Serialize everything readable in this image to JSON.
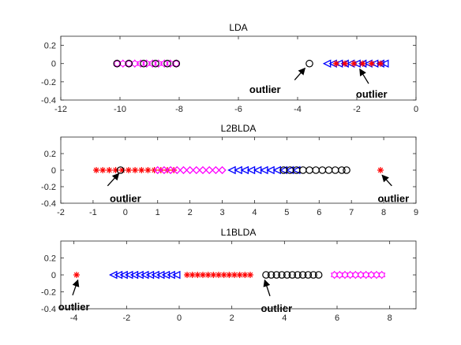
{
  "chart_data": [
    {
      "type": "scatter",
      "title": "LDA",
      "xlim": [
        -12,
        0
      ],
      "ylim": [
        -0.4,
        0.3
      ],
      "xticks": [
        -12,
        -10,
        -8,
        -6,
        -4,
        -2,
        0
      ],
      "xtick_labels": [
        "-12",
        "-10",
        "-8",
        "-6",
        "-4",
        "-2",
        "0"
      ],
      "yticks": [
        0.2,
        0,
        -0.2,
        -0.4
      ],
      "ytick_labels": [
        "0.2",
        "0",
        "-0.2",
        "-0.4"
      ],
      "series": [
        {
          "marker": "hexagram",
          "color": "#ff00ff",
          "x": [
            -10.1,
            -9.9,
            -9.7,
            -9.5,
            -9.3,
            -9.1,
            -8.9,
            -8.7,
            -8.5,
            -8.3,
            -8.1
          ],
          "y": [
            0,
            0,
            0,
            0,
            0,
            0,
            0,
            0,
            0,
            0,
            0
          ]
        },
        {
          "marker": "circle",
          "color": "#000000",
          "x": [
            -10.1,
            -9.7,
            -9.2,
            -8.8,
            -8.4,
            -8.1
          ],
          "y": [
            0,
            0,
            0,
            0,
            0,
            0
          ]
        },
        {
          "marker": "triangle-left",
          "color": "#0000ff",
          "x": [
            -3.0,
            -2.8,
            -2.6,
            -2.4,
            -2.2,
            -2.0,
            -1.8,
            -1.6,
            -1.4,
            -1.2,
            -1.05
          ],
          "y": [
            0,
            0,
            0,
            0,
            0,
            0,
            0,
            0,
            0,
            0,
            0
          ]
        },
        {
          "marker": "star",
          "color": "#ff0000",
          "x": [
            -2.7,
            -2.4,
            -2.1,
            -1.8,
            -1.5,
            -1.2
          ],
          "y": [
            0,
            0,
            0,
            0,
            0,
            0
          ]
        },
        {
          "marker": "circle",
          "color": "#000000",
          "x": [
            -3.6
          ],
          "y": [
            0
          ]
        }
      ],
      "annotations": [
        {
          "text": "outlier",
          "x": -5.1,
          "y": -0.28,
          "arrow_from": [
            -4.1,
            -0.18
          ],
          "arrow_to": [
            -3.75,
            -0.05
          ]
        },
        {
          "text": "outlier",
          "x": -1.5,
          "y": -0.33,
          "arrow_from": [
            -1.6,
            -0.22
          ],
          "arrow_to": [
            -1.9,
            -0.06
          ]
        }
      ]
    },
    {
      "type": "scatter",
      "title": "L2BLDA",
      "xlim": [
        -2,
        9
      ],
      "ylim": [
        -0.4,
        0.4
      ],
      "xticks": [
        -2,
        -1,
        0,
        1,
        2,
        3,
        4,
        5,
        6,
        7,
        8,
        9
      ],
      "xtick_labels": [
        "-2",
        "-1",
        "0",
        "1",
        "2",
        "3",
        "4",
        "5",
        "6",
        "7",
        "8",
        "9"
      ],
      "yticks": [
        0.2,
        0,
        -0.2,
        -0.4
      ],
      "ytick_labels": [
        "0.2",
        "0",
        "-0.2",
        "-0.4"
      ],
      "series": [
        {
          "marker": "star",
          "color": "#ff0000",
          "x": [
            -0.9,
            -0.7,
            -0.5,
            -0.3,
            -0.1,
            0.1,
            0.3,
            0.5,
            0.7,
            0.9,
            1.1,
            1.3,
            1.5
          ],
          "y": [
            0,
            0,
            0,
            0,
            0,
            0,
            0,
            0,
            0,
            0,
            0,
            0,
            0
          ]
        },
        {
          "marker": "diamond",
          "color": "#ff00ff",
          "x": [
            1.0,
            1.2,
            1.4,
            1.6,
            1.8,
            2.0,
            2.2,
            2.4,
            2.6,
            2.8,
            3.0
          ],
          "y": [
            0,
            0,
            0,
            0,
            0,
            0,
            0,
            0,
            0,
            0,
            0
          ]
        },
        {
          "marker": "triangle-left",
          "color": "#0000ff",
          "x": [
            3.3,
            3.5,
            3.7,
            3.9,
            4.1,
            4.3,
            4.5,
            4.7,
            4.9,
            5.1,
            5.3
          ],
          "y": [
            0,
            0,
            0,
            0,
            0,
            0,
            0,
            0,
            0,
            0,
            0
          ]
        },
        {
          "marker": "circle",
          "color": "#000000",
          "x": [
            4.9,
            5.1,
            5.3,
            5.5,
            5.7,
            5.9,
            6.1,
            6.3,
            6.5,
            6.7,
            6.85
          ],
          "y": [
            0,
            0,
            0,
            0,
            0,
            0,
            0,
            0,
            0,
            0,
            0
          ]
        },
        {
          "marker": "circle",
          "color": "#000000",
          "x": [
            -0.15
          ],
          "y": [
            0
          ]
        },
        {
          "marker": "star",
          "color": "#ff0000",
          "x": [
            7.9
          ],
          "y": [
            0
          ]
        }
      ],
      "annotations": [
        {
          "text": "outlier",
          "x": 0.0,
          "y": -0.34,
          "arrow_from": [
            -0.55,
            -0.19
          ],
          "arrow_to": [
            -0.2,
            -0.04
          ]
        },
        {
          "text": "outlier",
          "x": 8.3,
          "y": -0.34,
          "arrow_from": [
            8.25,
            -0.19
          ],
          "arrow_to": [
            7.95,
            -0.06
          ]
        }
      ]
    },
    {
      "type": "scatter",
      "title": "L1BLDA",
      "xlim": [
        -4.5,
        9
      ],
      "ylim": [
        -0.4,
        0.4
      ],
      "xticks": [
        -4,
        -2,
        0,
        2,
        4,
        6,
        8
      ],
      "xtick_labels": [
        "-4",
        "-2",
        "0",
        "2",
        "4",
        "6",
        "8"
      ],
      "yticks": [
        0.2,
        0,
        -0.2,
        -0.4
      ],
      "ytick_labels": [
        "0.2",
        "0",
        "-0.2",
        "-0.4"
      ],
      "series": [
        {
          "marker": "triangle-left",
          "color": "#0000ff",
          "x": [
            -2.5,
            -2.3,
            -2.1,
            -1.9,
            -1.7,
            -1.5,
            -1.3,
            -1.1,
            -0.9,
            -0.7,
            -0.5,
            -0.3,
            -0.1
          ],
          "y": [
            0,
            0,
            0,
            0,
            0,
            0,
            0,
            0,
            0,
            0,
            0,
            0,
            0
          ]
        },
        {
          "marker": "star",
          "color": "#ff0000",
          "x": [
            0.3,
            0.5,
            0.7,
            0.9,
            1.1,
            1.3,
            1.5,
            1.7,
            1.9,
            2.1,
            2.3,
            2.5,
            2.7
          ],
          "y": [
            0,
            0,
            0,
            0,
            0,
            0,
            0,
            0,
            0,
            0,
            0,
            0,
            0
          ]
        },
        {
          "marker": "circle",
          "color": "#000000",
          "x": [
            3.3,
            3.5,
            3.7,
            3.9,
            4.1,
            4.3,
            4.5,
            4.7,
            4.9,
            5.1,
            5.3
          ],
          "y": [
            0,
            0,
            0,
            0,
            0,
            0,
            0,
            0,
            0,
            0,
            0
          ]
        },
        {
          "marker": "hexagram",
          "color": "#ff00ff",
          "x": [
            5.9,
            6.1,
            6.3,
            6.5,
            6.7,
            6.9,
            7.1,
            7.3,
            7.5,
            7.7
          ],
          "y": [
            0,
            0,
            0,
            0,
            0,
            0,
            0,
            0,
            0,
            0
          ]
        },
        {
          "marker": "star",
          "color": "#ff0000",
          "x": [
            -3.9
          ],
          "y": [
            0
          ]
        }
      ],
      "annotations": [
        {
          "text": "outlier",
          "x": -4.0,
          "y": -0.37,
          "arrow_from": [
            -4.05,
            -0.24
          ],
          "arrow_to": [
            -3.85,
            -0.06
          ]
        },
        {
          "text": "outlier",
          "x": 3.7,
          "y": -0.39,
          "arrow_from": [
            3.45,
            -0.25
          ],
          "arrow_to": [
            3.25,
            -0.06
          ]
        }
      ]
    }
  ]
}
